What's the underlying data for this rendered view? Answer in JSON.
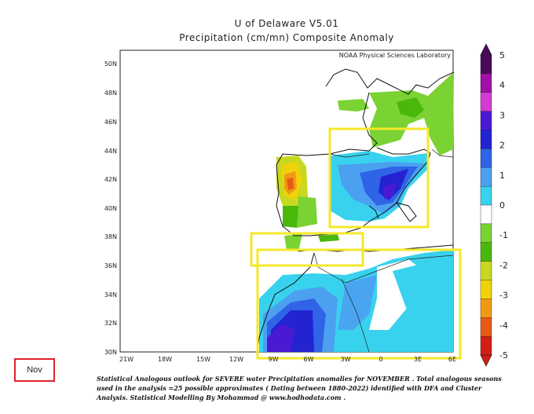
{
  "map": {
    "title_line1": "U of Delaware V5.01",
    "title_line2": "Precipitation (cm/mn) Composite Anomaly",
    "credit": "NOAA Physical Sciences Laboratory",
    "lat_labels": [
      "50N",
      "48N",
      "46N",
      "44N",
      "42N",
      "40N",
      "38N",
      "36N",
      "34N",
      "32N",
      "30N"
    ],
    "lon_labels": [
      "21W",
      "18W",
      "15W",
      "12W",
      "9W",
      "6W",
      "3W",
      "0",
      "3E",
      "6E"
    ],
    "region": "Iberia and Northwest Africa",
    "highlight_boxes": [
      "northeast-spain-box",
      "gibraltar-strait-box",
      "northwest-africa-box"
    ]
  },
  "colorbar": {
    "labels": [
      "5",
      "4",
      "3",
      "2",
      "1",
      "0",
      "-1",
      "-2",
      "-3",
      "-4",
      "-5"
    ],
    "colors": [
      "#4a0a5a",
      "#a010a8",
      "#d23cd2",
      "#4a1ad2",
      "#2323d2",
      "#2f64e6",
      "#4ca0f0",
      "#38d2ee",
      "#ffffff",
      "#7ad233",
      "#4ab80a",
      "#c8d820",
      "#f0d20a",
      "#f09a14",
      "#e65a14",
      "#d21e14"
    ]
  },
  "caption": {
    "line1": "Statistical Analogous outlook for SEVERE water Precipitation anomalies for NOVEMBER . Total analogous seasons",
    "line2": "used in the analysis =25 possible approximates ( Dating between 1880-2022) identified with DFA and Cluster",
    "line3": "Analysis. Statistical Modelling By Mohammad @ www.hodhodata.com ."
  },
  "month_badge": "Nov"
}
